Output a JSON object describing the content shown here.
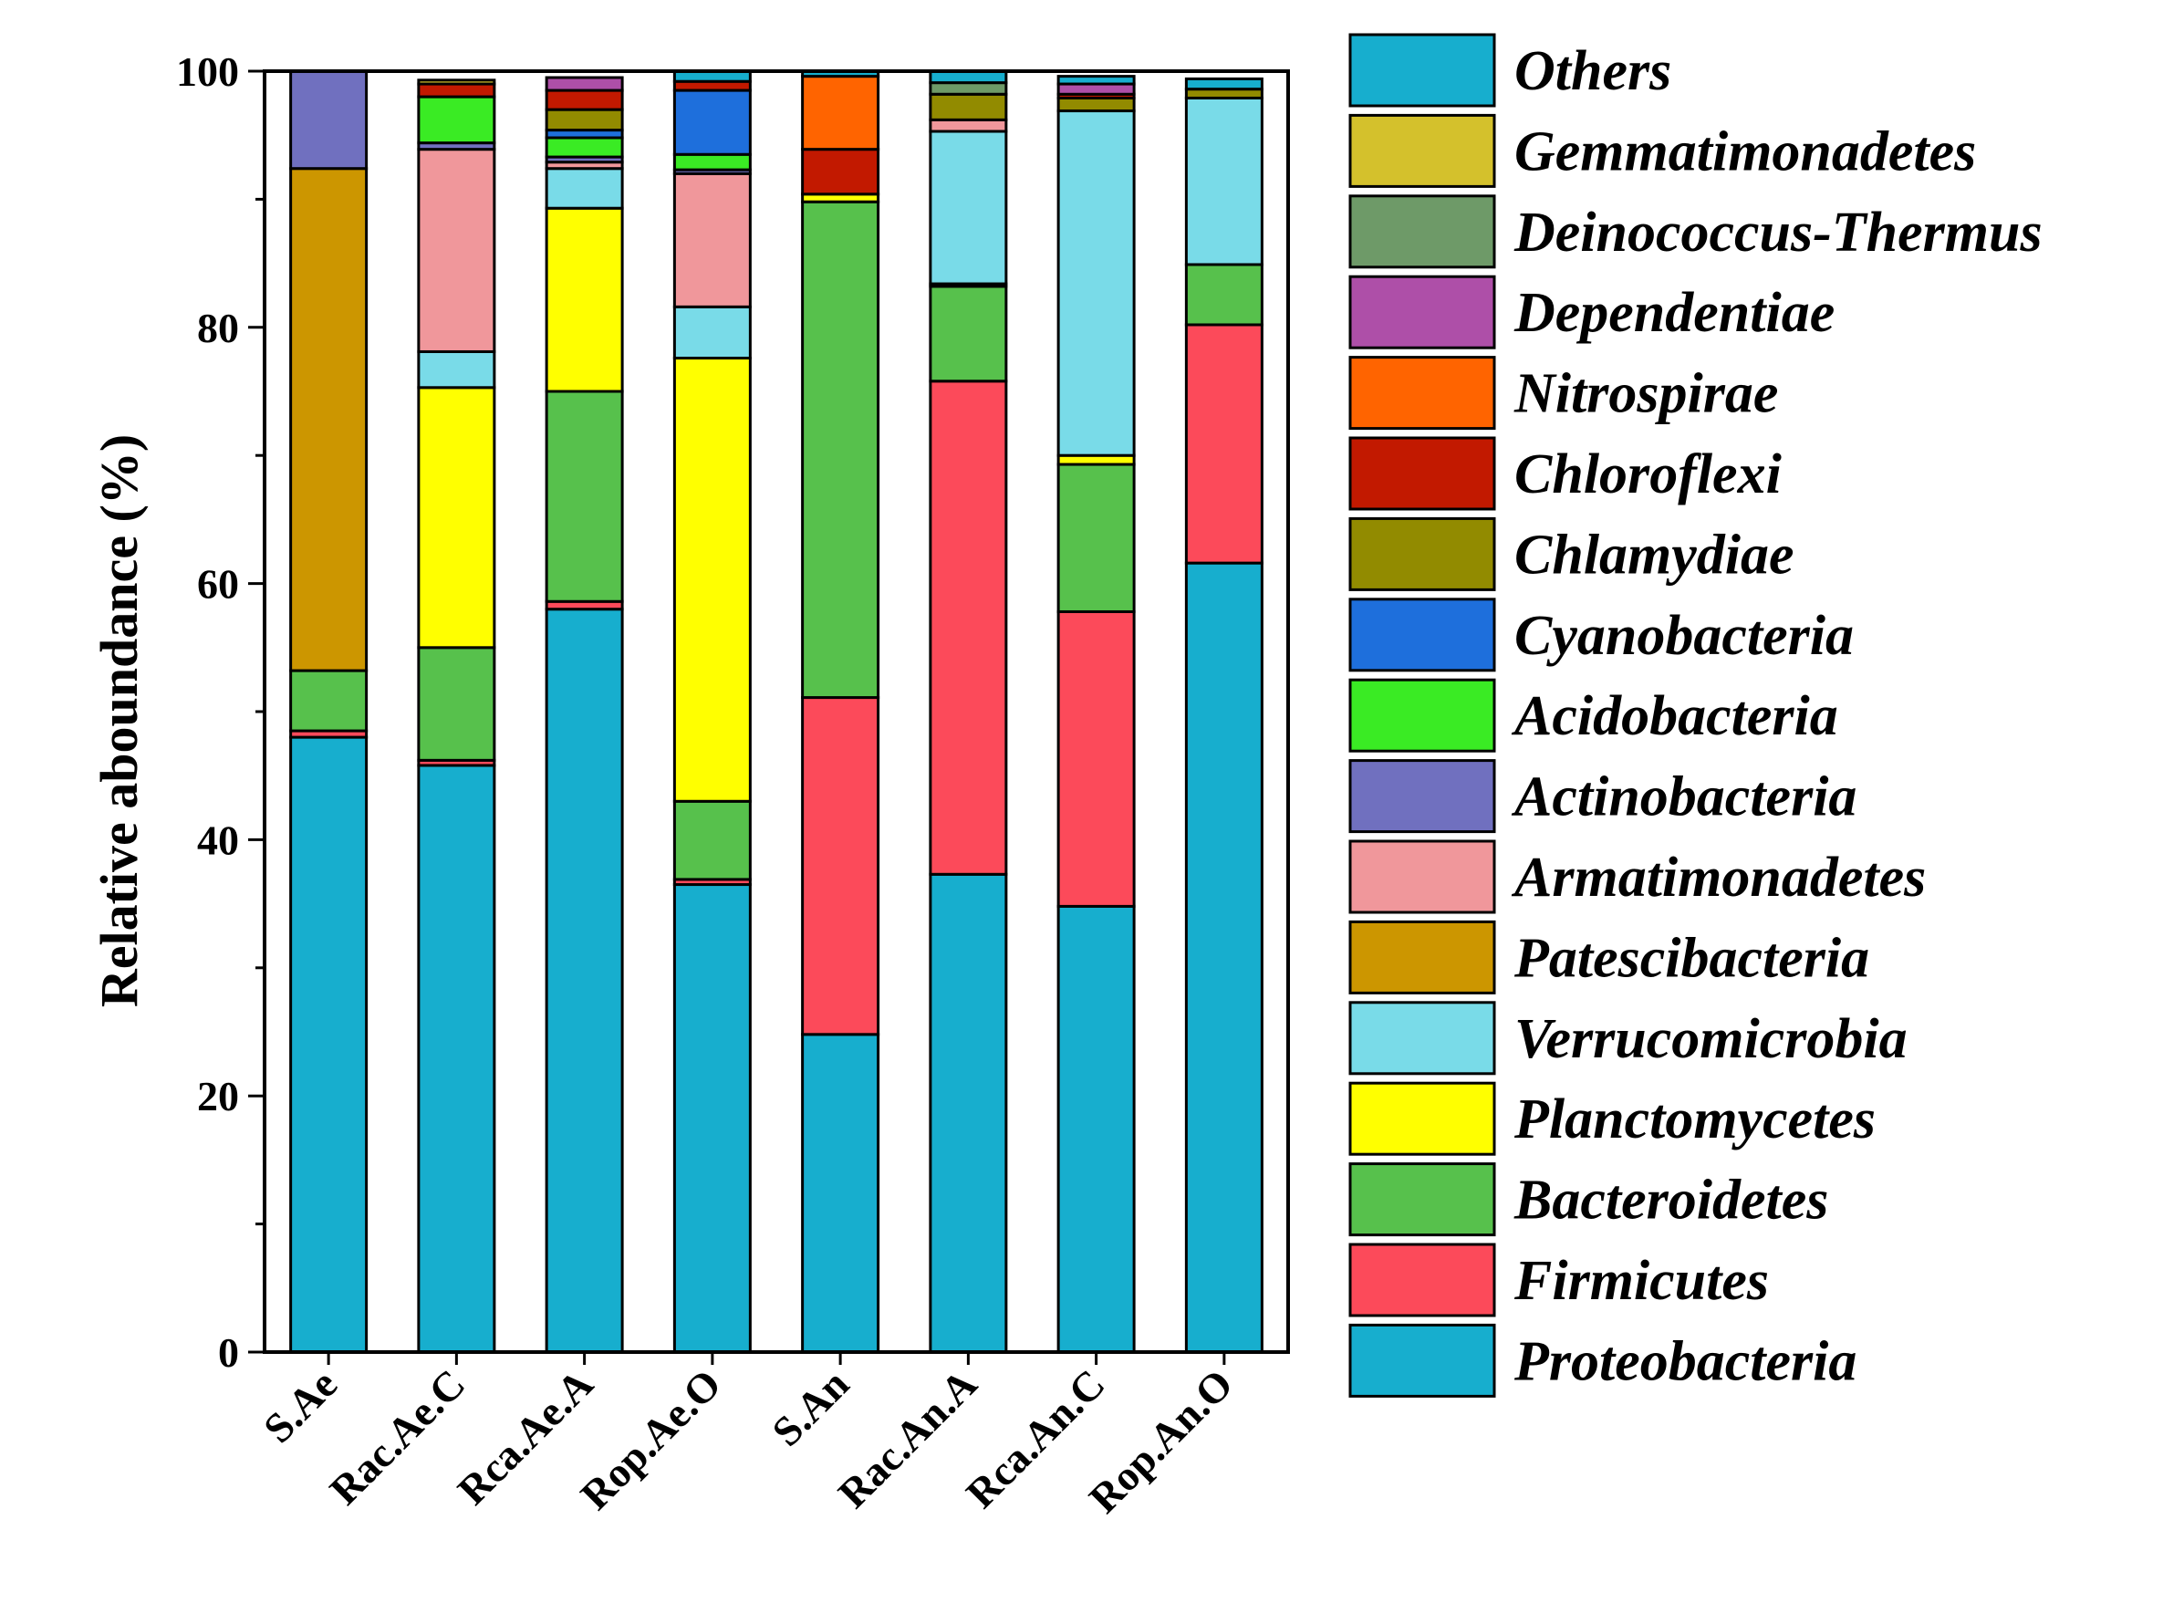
{
  "chart_data": {
    "type": "stacked-bar",
    "title": "",
    "xlabel": "",
    "ylabel": "Relative aboundance (%)",
    "ylim": [
      0,
      100
    ],
    "yticks": [
      "0",
      "20",
      "40",
      "60",
      "80",
      "100"
    ],
    "categories": [
      "S.Ae",
      "Rac.Ae.C",
      "Rca.Ae.A",
      "Rop.Ae.O",
      "S.An",
      "Rac.An.A",
      "Rca.An.C",
      "Rop.An.O"
    ],
    "series": [
      {
        "name": "Proteobacteria",
        "color": "#17AECE",
        "values": [
          48.0,
          45.8,
          58.0,
          36.5,
          24.8,
          37.3,
          34.8,
          61.6
        ]
      },
      {
        "name": "Firmicutes",
        "color": "#FC4A5A",
        "values": [
          0.5,
          0.4,
          0.6,
          0.4,
          26.3,
          38.5,
          23.0,
          18.6
        ]
      },
      {
        "name": "Bacteroidetes",
        "color": "#57C14C",
        "values": [
          4.7,
          8.8,
          16.4,
          6.1,
          38.7,
          7.4,
          11.5,
          4.7
        ]
      },
      {
        "name": "Planctomycetes",
        "color": "#FFFF00",
        "values": [
          0.0,
          20.3,
          14.3,
          34.6,
          0.6,
          0.2,
          0.7,
          0.0
        ]
      },
      {
        "name": "Verrucomicrobia",
        "color": "#79DBE8",
        "values": [
          0.0,
          2.8,
          3.1,
          4.0,
          0.0,
          11.9,
          26.9,
          13.0
        ]
      },
      {
        "name": "Patescibacteria",
        "color": "#CC9600",
        "values": [
          39.2,
          0.0,
          0.0,
          0.0,
          0.0,
          0.0,
          0.0,
          0.0
        ]
      },
      {
        "name": "Armatimonadetes",
        "color": "#F0979B",
        "values": [
          0.0,
          15.8,
          0.5,
          10.4,
          0.0,
          0.9,
          0.0,
          0.0
        ]
      },
      {
        "name": "Actinobacteria",
        "color": "#7070BF",
        "values": [
          7.6,
          0.5,
          0.4,
          0.3,
          0.0,
          0.0,
          0.0,
          0.0
        ]
      },
      {
        "name": "Acidobacteria",
        "color": "#3AEB24",
        "values": [
          0.0,
          3.6,
          1.5,
          1.2,
          0.0,
          0.0,
          0.0,
          0.0
        ]
      },
      {
        "name": "Cyanobacteria",
        "color": "#1E6FDC",
        "values": [
          0.0,
          0.0,
          0.6,
          5.0,
          0.0,
          0.0,
          0.0,
          0.0
        ]
      },
      {
        "name": "Chlamydiae",
        "color": "#928B00",
        "values": [
          0.0,
          0.0,
          1.6,
          0.0,
          0.0,
          2.0,
          1.0,
          0.7
        ]
      },
      {
        "name": "Chloroflexi",
        "color": "#C21900",
        "values": [
          0.0,
          1.0,
          1.5,
          0.7,
          3.5,
          0.0,
          0.3,
          0.0
        ]
      },
      {
        "name": "Nitrospirae",
        "color": "#FF6400",
        "values": [
          0.0,
          0.0,
          0.0,
          0.0,
          5.7,
          0.0,
          0.0,
          0.0
        ]
      },
      {
        "name": "Dependentiae",
        "color": "#AE4FA8",
        "values": [
          0.0,
          0.0,
          1.0,
          0.0,
          0.0,
          0.0,
          0.8,
          0.0
        ]
      },
      {
        "name": "Deinococcus-Thermus",
        "color": "#6E9A68",
        "values": [
          0.0,
          0.0,
          0.0,
          0.0,
          0.0,
          0.9,
          0.0,
          0.0
        ]
      },
      {
        "name": "Gemmatimonadetes",
        "color": "#D4C12C",
        "values": [
          0.0,
          0.3,
          0.0,
          0.0,
          0.0,
          0.0,
          0.0,
          0.0
        ]
      },
      {
        "name": "Others",
        "color": "#17AECE",
        "values": [
          0.0,
          0.0,
          0.0,
          0.8,
          0.4,
          0.9,
          0.6,
          0.8
        ]
      }
    ],
    "legend": {
      "position": "right",
      "entries": [
        "Others",
        "Gemmatimonadetes",
        "Deinococcus-Thermus",
        "Dependentiae",
        "Nitrospirae",
        "Chloroflexi",
        "Chlamydiae",
        "Cyanobacteria",
        "Acidobacteria",
        "Actinobacteria",
        "Armatimonadetes",
        "Patescibacteria",
        "Verrucomicrobia",
        "Planctomycetes",
        "Bacteroidetes",
        "Firmicutes",
        "Proteobacteria"
      ]
    }
  }
}
